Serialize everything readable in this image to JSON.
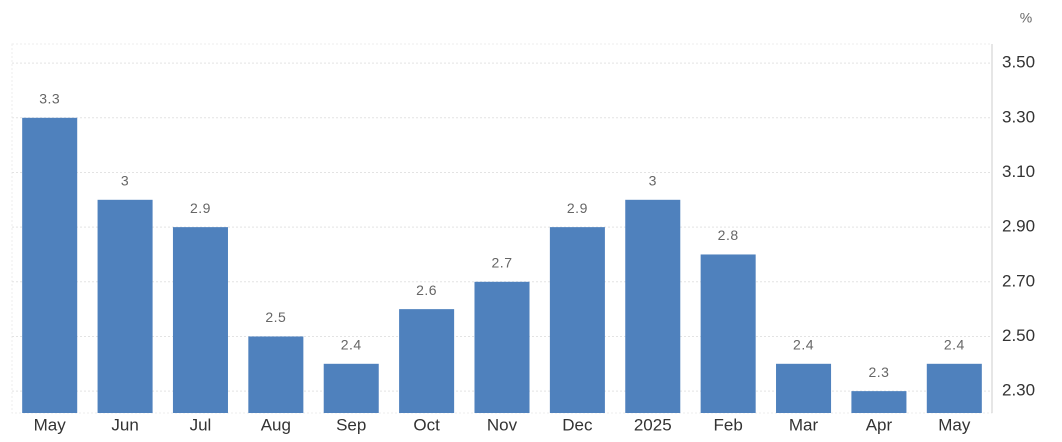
{
  "chart_data": {
    "type": "bar",
    "unit": "%",
    "categories": [
      "May",
      "Jun",
      "Jul",
      "Aug",
      "Sep",
      "Oct",
      "Nov",
      "Dec",
      "2025",
      "Feb",
      "Mar",
      "Apr",
      "May"
    ],
    "values": [
      3.3,
      3,
      2.9,
      2.5,
      2.4,
      2.6,
      2.7,
      2.9,
      3,
      2.8,
      2.4,
      2.3,
      2.4
    ],
    "color": "#4f81bd",
    "ylim": [
      2.22,
      3.57
    ],
    "yticks": [
      {
        "value": 2.3,
        "label": "2.30"
      },
      {
        "value": 2.5,
        "label": "2.50"
      },
      {
        "value": 2.7,
        "label": "2.70"
      },
      {
        "value": 2.9,
        "label": "2.90"
      },
      {
        "value": 3.1,
        "label": "3.10"
      },
      {
        "value": 3.3,
        "label": "3.30"
      },
      {
        "value": 3.5,
        "label": "3.50"
      }
    ],
    "grid": true
  }
}
